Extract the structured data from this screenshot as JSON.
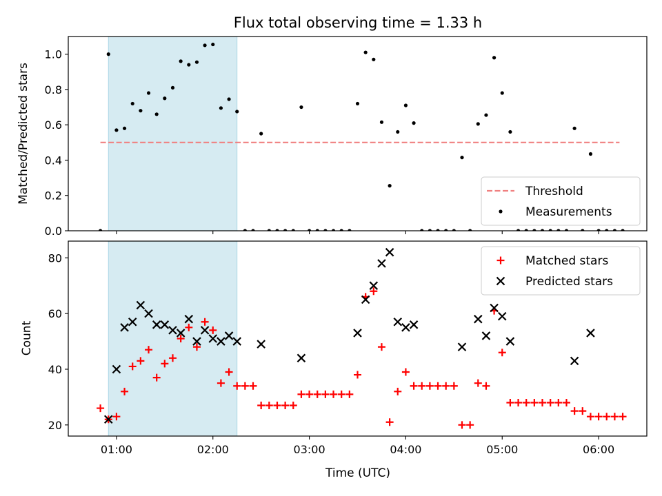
{
  "chart_data": [
    {
      "type": "scatter",
      "title": "Flux total observing time = 1.33 h",
      "xlabel": "",
      "ylabel": "Matched/Predicted stars",
      "ylim": [
        0,
        1.1
      ],
      "yticks": [
        "0.0",
        "0.2",
        "0.4",
        "0.6",
        "0.8",
        "1.0"
      ],
      "shaded_region": {
        "start": "00:55",
        "end": "02:15",
        "color": "#add8e6"
      },
      "legend_position": "lower-right",
      "threshold": {
        "name": "Threshold",
        "value": 0.5,
        "start": "00:50",
        "end": "06:13",
        "color": "#f08080"
      },
      "series": [
        {
          "name": "Measurements",
          "color": "#000000",
          "marker": "dot",
          "points": [
            [
              "00:50",
              0
            ],
            [
              "00:55",
              1.0
            ],
            [
              "01:00",
              0.57
            ],
            [
              "01:05",
              0.58
            ],
            [
              "01:10",
              0.72
            ],
            [
              "01:15",
              0.68
            ],
            [
              "01:20",
              0.78
            ],
            [
              "01:25",
              0.66
            ],
            [
              "01:30",
              0.75
            ],
            [
              "01:35",
              0.81
            ],
            [
              "01:40",
              0.96
            ],
            [
              "01:45",
              0.94
            ],
            [
              "01:50",
              0.955
            ],
            [
              "01:55",
              1.05
            ],
            [
              "02:00",
              1.055
            ],
            [
              "02:05",
              0.695
            ],
            [
              "02:10",
              0.745
            ],
            [
              "02:15",
              0.675
            ],
            [
              "02:20",
              0
            ],
            [
              "02:25",
              0
            ],
            [
              "02:30",
              0.55
            ],
            [
              "02:35",
              0
            ],
            [
              "02:40",
              0
            ],
            [
              "02:45",
              0
            ],
            [
              "02:50",
              0
            ],
            [
              "02:55",
              0.7
            ],
            [
              "03:00",
              0
            ],
            [
              "03:05",
              0
            ],
            [
              "03:10",
              0
            ],
            [
              "03:15",
              0
            ],
            [
              "03:20",
              0
            ],
            [
              "03:25",
              0
            ],
            [
              "03:30",
              0.72
            ],
            [
              "03:35",
              1.01
            ],
            [
              "03:40",
              0.97
            ],
            [
              "03:45",
              0.615
            ],
            [
              "03:50",
              0.255
            ],
            [
              "03:55",
              0.56
            ],
            [
              "04:00",
              0.71
            ],
            [
              "04:05",
              0.61
            ],
            [
              "04:10",
              0
            ],
            [
              "04:15",
              0
            ],
            [
              "04:20",
              0
            ],
            [
              "04:25",
              0
            ],
            [
              "04:30",
              0
            ],
            [
              "04:35",
              0.415
            ],
            [
              "04:40",
              0
            ],
            [
              "04:45",
              0.605
            ],
            [
              "04:50",
              0.655
            ],
            [
              "04:55",
              0.98
            ],
            [
              "05:00",
              0.78
            ],
            [
              "05:05",
              0.56
            ],
            [
              "05:10",
              0
            ],
            [
              "05:15",
              0
            ],
            [
              "05:20",
              0
            ],
            [
              "05:25",
              0
            ],
            [
              "05:30",
              0
            ],
            [
              "05:35",
              0
            ],
            [
              "05:40",
              0
            ],
            [
              "05:45",
              0.58
            ],
            [
              "05:50",
              0
            ],
            [
              "05:55",
              0.435
            ],
            [
              "06:00",
              0
            ],
            [
              "06:05",
              0
            ],
            [
              "06:10",
              0
            ],
            [
              "06:15",
              0
            ]
          ]
        }
      ]
    },
    {
      "type": "scatter",
      "title": "",
      "xlabel": "Time (UTC)",
      "ylabel": "Count",
      "ylim": [
        16,
        86
      ],
      "yticks": [
        "20",
        "40",
        "60",
        "80"
      ],
      "xlim": [
        "00:30",
        "06:30"
      ],
      "xticks": [
        "01:00",
        "02:00",
        "03:00",
        "04:00",
        "05:00",
        "06:00"
      ],
      "shaded_region": {
        "start": "00:55",
        "end": "02:15",
        "color": "#add8e6"
      },
      "legend_position": "top-right",
      "series": [
        {
          "name": "Matched stars",
          "color": "#ff0000",
          "marker": "plus",
          "points": [
            [
              "00:50",
              26
            ],
            [
              "00:55",
              22
            ],
            [
              "01:00",
              23
            ],
            [
              "01:05",
              32
            ],
            [
              "01:10",
              41
            ],
            [
              "01:15",
              43
            ],
            [
              "01:20",
              47
            ],
            [
              "01:25",
              37
            ],
            [
              "01:30",
              42
            ],
            [
              "01:35",
              44
            ],
            [
              "01:40",
              51
            ],
            [
              "01:45",
              55
            ],
            [
              "01:50",
              48
            ],
            [
              "01:55",
              57
            ],
            [
              "02:00",
              54
            ],
            [
              "02:05",
              35
            ],
            [
              "02:10",
              39
            ],
            [
              "02:15",
              34
            ],
            [
              "02:20",
              34
            ],
            [
              "02:25",
              34
            ],
            [
              "02:30",
              27
            ],
            [
              "02:35",
              27
            ],
            [
              "02:40",
              27
            ],
            [
              "02:45",
              27
            ],
            [
              "02:50",
              27
            ],
            [
              "02:55",
              31
            ],
            [
              "03:00",
              31
            ],
            [
              "03:05",
              31
            ],
            [
              "03:10",
              31
            ],
            [
              "03:15",
              31
            ],
            [
              "03:20",
              31
            ],
            [
              "03:25",
              31
            ],
            [
              "03:30",
              38
            ],
            [
              "03:35",
              66
            ],
            [
              "03:40",
              68
            ],
            [
              "03:45",
              48
            ],
            [
              "03:50",
              21
            ],
            [
              "03:55",
              32
            ],
            [
              "04:00",
              39
            ],
            [
              "04:05",
              34
            ],
            [
              "04:10",
              34
            ],
            [
              "04:15",
              34
            ],
            [
              "04:20",
              34
            ],
            [
              "04:25",
              34
            ],
            [
              "04:30",
              34
            ],
            [
              "04:35",
              20
            ],
            [
              "04:40",
              20
            ],
            [
              "04:45",
              35
            ],
            [
              "04:50",
              34
            ],
            [
              "04:55",
              61
            ],
            [
              "05:00",
              46
            ],
            [
              "05:05",
              28
            ],
            [
              "05:10",
              28
            ],
            [
              "05:15",
              28
            ],
            [
              "05:20",
              28
            ],
            [
              "05:25",
              28
            ],
            [
              "05:30",
              28
            ],
            [
              "05:35",
              28
            ],
            [
              "05:40",
              28
            ],
            [
              "05:45",
              25
            ],
            [
              "05:50",
              25
            ],
            [
              "05:55",
              23
            ],
            [
              "06:00",
              23
            ],
            [
              "06:05",
              23
            ],
            [
              "06:10",
              23
            ],
            [
              "06:15",
              23
            ]
          ]
        },
        {
          "name": "Predicted stars",
          "color": "#000000",
          "marker": "x",
          "points": [
            [
              "00:55",
              22
            ],
            [
              "01:00",
              40
            ],
            [
              "01:05",
              55
            ],
            [
              "01:10",
              57
            ],
            [
              "01:15",
              63
            ],
            [
              "01:20",
              60
            ],
            [
              "01:25",
              56
            ],
            [
              "01:30",
              56
            ],
            [
              "01:35",
              54
            ],
            [
              "01:40",
              53
            ],
            [
              "01:45",
              58
            ],
            [
              "01:50",
              50
            ],
            [
              "01:55",
              54
            ],
            [
              "02:00",
              51
            ],
            [
              "02:05",
              50
            ],
            [
              "02:10",
              52
            ],
            [
              "02:15",
              50
            ],
            [
              "02:30",
              49
            ],
            [
              "02:55",
              44
            ],
            [
              "03:30",
              53
            ],
            [
              "03:35",
              65
            ],
            [
              "03:40",
              70
            ],
            [
              "03:45",
              78
            ],
            [
              "03:50",
              82
            ],
            [
              "03:55",
              57
            ],
            [
              "04:00",
              55
            ],
            [
              "04:05",
              56
            ],
            [
              "04:35",
              48
            ],
            [
              "04:45",
              58
            ],
            [
              "04:50",
              52
            ],
            [
              "04:55",
              62
            ],
            [
              "05:00",
              59
            ],
            [
              "05:05",
              50
            ],
            [
              "05:45",
              43
            ],
            [
              "05:55",
              53
            ]
          ]
        }
      ]
    }
  ]
}
